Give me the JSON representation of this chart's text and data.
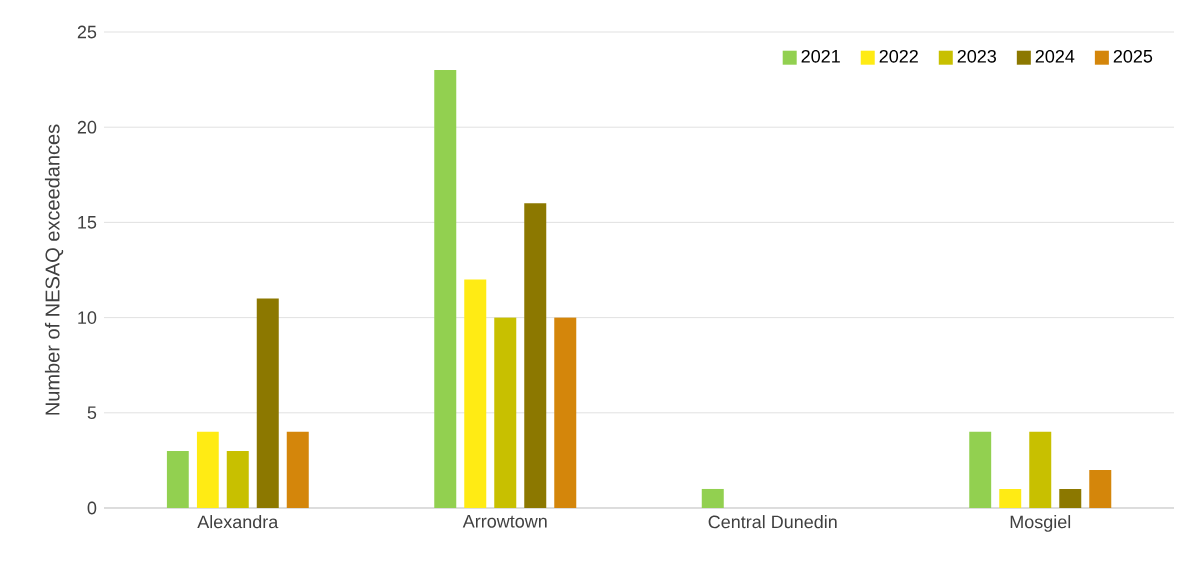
{
  "chart_data": {
    "type": "bar",
    "ylabel": "Number of NESAQ exceedances",
    "categories": [
      "Alexandra",
      "Arrowtown",
      "Central Dunedin",
      "Mosgiel"
    ],
    "series": [
      {
        "name": "2021",
        "color": "#92d050",
        "values": [
          3,
          23,
          1,
          4
        ]
      },
      {
        "name": "2022",
        "color": "#ffeb14",
        "values": [
          4,
          12,
          0,
          1
        ]
      },
      {
        "name": "2023",
        "color": "#c8c000",
        "values": [
          3,
          10,
          0,
          4
        ]
      },
      {
        "name": "2024",
        "color": "#8c7800",
        "values": [
          11,
          16,
          0,
          1
        ]
      },
      {
        "name": "2025",
        "color": "#d4860b",
        "values": [
          4,
          10,
          0,
          2
        ]
      }
    ],
    "ylim": [
      0,
      25
    ],
    "yticks": [
      0,
      5,
      10,
      15,
      20,
      25
    ],
    "grid": "y",
    "legend": "top right"
  }
}
